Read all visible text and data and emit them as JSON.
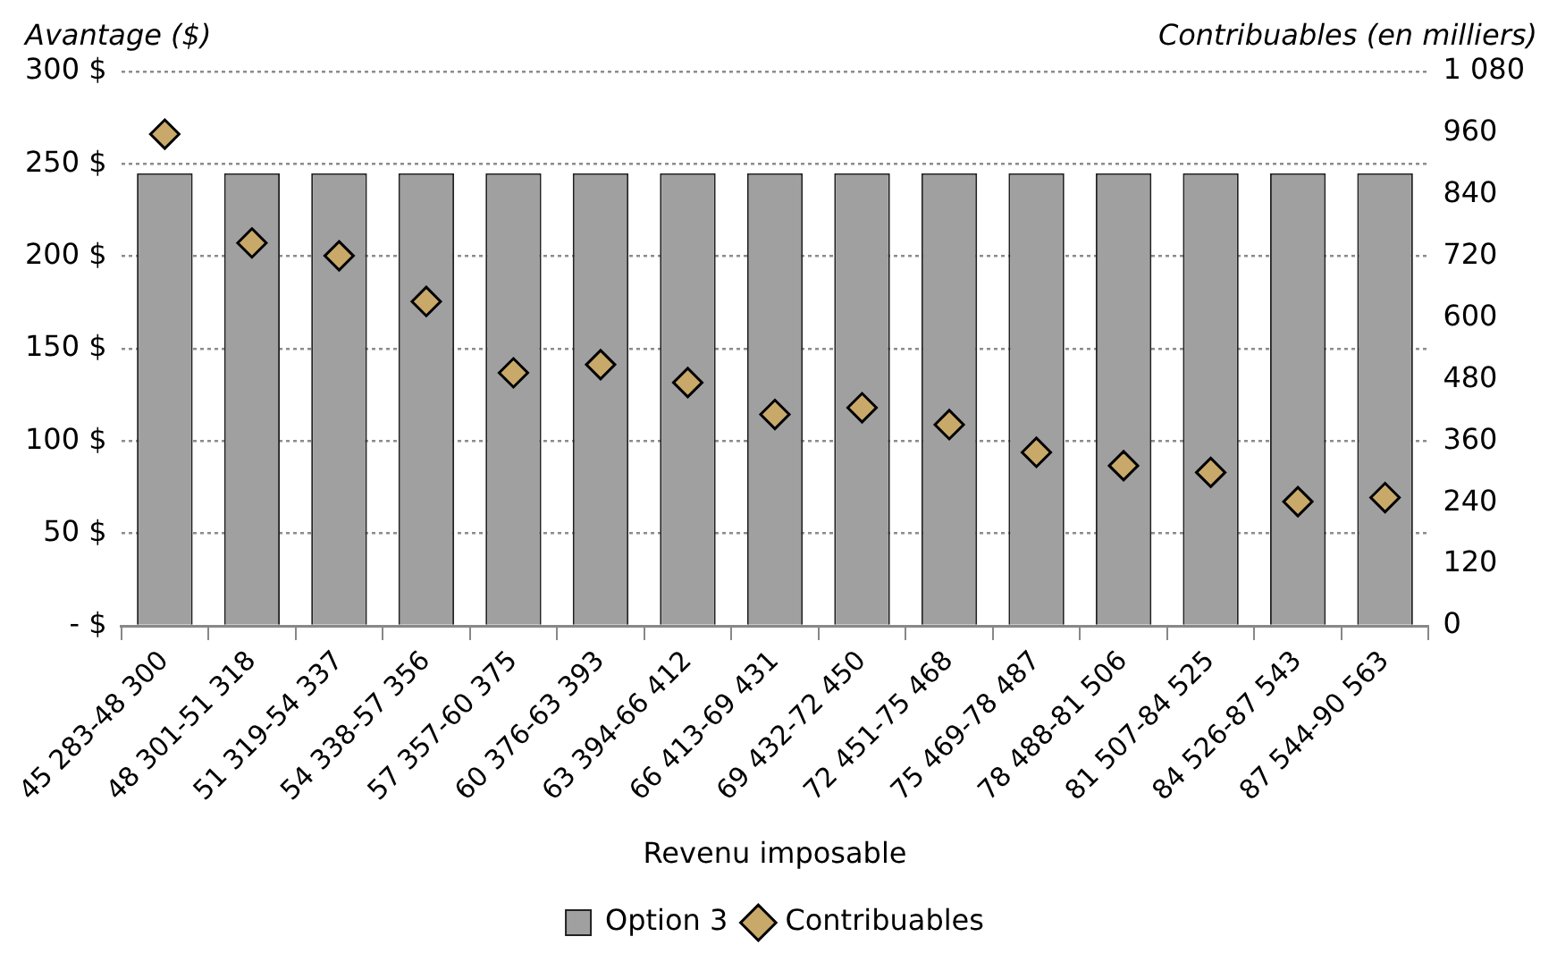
{
  "chart_data": {
    "type": "bar",
    "xlabel": "Revenu imposable",
    "ylabel": "Avantage ($)",
    "y2label": "Contribuables (en milliers)",
    "categories": [
      "45 283-48 300",
      "48 301-51 318",
      "51 319-54 337",
      "54 338-57 356",
      "57 357-60 375",
      "60 376-63 393",
      "63 394-66 412",
      "66 413-69 431",
      "69 432-72 450",
      "72 451-75 468",
      "75 469-78 487",
      "78 488-81 506",
      "81 507-84 525",
      "84 526-87 543",
      "87 544-90 563"
    ],
    "series": [
      {
        "name": "Option 3",
        "color": "#a0a0a0",
        "values": [
          245,
          245,
          245,
          245,
          245,
          245,
          245,
          245,
          245,
          245,
          245,
          245,
          245,
          245,
          245
        ]
      },
      {
        "name": "Contribuables",
        "type": "scatter",
        "axis": "y2",
        "color": "#c8a96a",
        "marker": "diamond",
        "values": [
          958,
          746,
          721,
          632,
          493,
          509,
          474,
          412,
          425,
          392,
          338,
          312,
          299,
          242,
          250
        ]
      }
    ],
    "ylim": [
      0,
      300
    ],
    "yticks": [
      {
        "value": 0,
        "label": "- $"
      },
      {
        "value": 50,
        "label": "50 $"
      },
      {
        "value": 100,
        "label": "100 $"
      },
      {
        "value": 150,
        "label": "150 $"
      },
      {
        "value": 200,
        "label": "200 $"
      },
      {
        "value": 250,
        "label": "250 $"
      },
      {
        "value": 300,
        "label": "300 $"
      }
    ],
    "y2lim": [
      0,
      1080
    ],
    "y2ticks": [
      0,
      120,
      240,
      360,
      480,
      600,
      720,
      840,
      960,
      {
        "value": 1080,
        "label": "1 080"
      }
    ],
    "grid": "y",
    "legend": "bottom"
  }
}
